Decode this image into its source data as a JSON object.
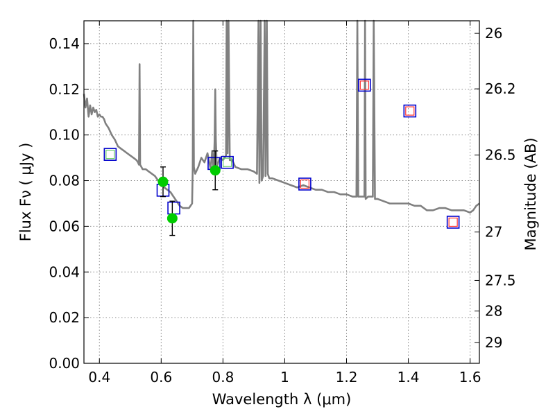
{
  "chart_data": {
    "type": "scatter",
    "xlabel": "Wavelength  λ (μm)",
    "ylabel": "Flux  Fν  ( μJy )",
    "y2label": "Magnitude (AB)",
    "xlim": [
      0.35,
      1.63
    ],
    "ylim": [
      0,
      0.15
    ],
    "grid": true,
    "x_ticks": [
      {
        "v": 0.4,
        "label": "0.4"
      },
      {
        "v": 0.6,
        "label": "0.6"
      },
      {
        "v": 0.8,
        "label": "0.8"
      },
      {
        "v": 1.0,
        "label": "1"
      },
      {
        "v": 1.2,
        "label": "1.2"
      },
      {
        "v": 1.4,
        "label": "1.4"
      },
      {
        "v": 1.6,
        "label": "1.6"
      }
    ],
    "y_ticks": [
      {
        "v": 0.0,
        "label": "0.00"
      },
      {
        "v": 0.02,
        "label": "0.02"
      },
      {
        "v": 0.04,
        "label": "0.04"
      },
      {
        "v": 0.06,
        "label": "0.06"
      },
      {
        "v": 0.08,
        "label": "0.08"
      },
      {
        "v": 0.1,
        "label": "0.10"
      },
      {
        "v": 0.12,
        "label": "0.12"
      },
      {
        "v": 0.14,
        "label": "0.14"
      }
    ],
    "y2_ticks": [
      {
        "flux": 0.1445,
        "label": "26"
      },
      {
        "flux": 0.1202,
        "label": "26.2"
      },
      {
        "flux": 0.0912,
        "label": "26.5"
      },
      {
        "flux": 0.0575,
        "label": "27"
      },
      {
        "flux": 0.0363,
        "label": "27.5"
      },
      {
        "flux": 0.0229,
        "label": "28"
      },
      {
        "flux": 0.0091,
        "label": "29"
      }
    ],
    "colors": {
      "template": "#808080",
      "model_box": "#0000cc",
      "observed_point": "#00cc00",
      "error_bar": "#000000",
      "inner_green": "#66cc66",
      "inner_red": "#ff3333",
      "grid": "#888888"
    },
    "template_spectrum": [
      [
        0.35,
        0.118
      ],
      [
        0.355,
        0.112
      ],
      [
        0.36,
        0.116
      ],
      [
        0.365,
        0.108
      ],
      [
        0.37,
        0.113
      ],
      [
        0.375,
        0.109
      ],
      [
        0.38,
        0.112
      ],
      [
        0.385,
        0.11
      ],
      [
        0.39,
        0.111
      ],
      [
        0.395,
        0.108
      ],
      [
        0.4,
        0.109
      ],
      [
        0.405,
        0.108
      ],
      [
        0.41,
        0.108
      ],
      [
        0.415,
        0.107
      ],
      [
        0.42,
        0.105
      ],
      [
        0.43,
        0.103
      ],
      [
        0.44,
        0.1
      ],
      [
        0.45,
        0.098
      ],
      [
        0.46,
        0.095
      ],
      [
        0.47,
        0.094
      ],
      [
        0.48,
        0.093
      ],
      [
        0.49,
        0.092
      ],
      [
        0.5,
        0.091
      ],
      [
        0.51,
        0.09
      ],
      [
        0.52,
        0.089
      ],
      [
        0.525,
        0.088
      ],
      [
        0.528,
        0.087
      ],
      [
        0.53,
        0.131
      ],
      [
        0.532,
        0.087
      ],
      [
        0.54,
        0.085
      ],
      [
        0.55,
        0.085
      ],
      [
        0.56,
        0.084
      ],
      [
        0.57,
        0.083
      ],
      [
        0.58,
        0.082
      ],
      [
        0.59,
        0.08
      ],
      [
        0.6,
        0.079
      ],
      [
        0.61,
        0.077
      ],
      [
        0.62,
        0.076
      ],
      [
        0.63,
        0.075
      ],
      [
        0.64,
        0.073
      ],
      [
        0.65,
        0.071
      ],
      [
        0.66,
        0.069
      ],
      [
        0.67,
        0.068
      ],
      [
        0.68,
        0.068
      ],
      [
        0.69,
        0.068
      ],
      [
        0.7,
        0.07
      ],
      [
        0.702,
        0.085
      ],
      [
        0.704,
        0.15
      ],
      [
        0.706,
        0.086
      ],
      [
        0.71,
        0.083
      ],
      [
        0.72,
        0.086
      ],
      [
        0.73,
        0.09
      ],
      [
        0.74,
        0.088
      ],
      [
        0.75,
        0.092
      ],
      [
        0.76,
        0.085
      ],
      [
        0.765,
        0.093
      ],
      [
        0.77,
        0.084
      ],
      [
        0.773,
        0.098
      ],
      [
        0.775,
        0.12
      ],
      [
        0.777,
        0.098
      ],
      [
        0.78,
        0.086
      ],
      [
        0.79,
        0.09
      ],
      [
        0.8,
        0.089
      ],
      [
        0.81,
        0.091
      ],
      [
        0.812,
        0.15
      ],
      [
        0.815,
        0.092
      ],
      [
        0.818,
        0.15
      ],
      [
        0.822,
        0.089
      ],
      [
        0.83,
        0.089
      ],
      [
        0.84,
        0.086
      ],
      [
        0.86,
        0.085
      ],
      [
        0.88,
        0.085
      ],
      [
        0.9,
        0.084
      ],
      [
        0.91,
        0.083
      ],
      [
        0.915,
        0.15
      ],
      [
        0.918,
        0.079
      ],
      [
        0.922,
        0.15
      ],
      [
        0.925,
        0.08
      ],
      [
        0.93,
        0.082
      ],
      [
        0.935,
        0.15
      ],
      [
        0.938,
        0.082
      ],
      [
        0.942,
        0.15
      ],
      [
        0.945,
        0.083
      ],
      [
        0.95,
        0.081
      ],
      [
        0.96,
        0.081
      ],
      [
        0.98,
        0.08
      ],
      [
        1.0,
        0.079
      ],
      [
        1.02,
        0.078
      ],
      [
        1.04,
        0.077
      ],
      [
        1.06,
        0.078
      ],
      [
        1.08,
        0.077
      ],
      [
        1.1,
        0.076
      ],
      [
        1.12,
        0.076
      ],
      [
        1.14,
        0.075
      ],
      [
        1.16,
        0.075
      ],
      [
        1.18,
        0.074
      ],
      [
        1.2,
        0.074
      ],
      [
        1.22,
        0.073
      ],
      [
        1.232,
        0.073
      ],
      [
        1.235,
        0.15
      ],
      [
        1.238,
        0.073
      ],
      [
        1.25,
        0.073
      ],
      [
        1.258,
        0.073
      ],
      [
        1.26,
        0.15
      ],
      [
        1.262,
        0.072
      ],
      [
        1.27,
        0.073
      ],
      [
        1.285,
        0.073
      ],
      [
        1.288,
        0.15
      ],
      [
        1.292,
        0.072
      ],
      [
        1.3,
        0.072
      ],
      [
        1.32,
        0.071
      ],
      [
        1.34,
        0.07
      ],
      [
        1.36,
        0.07
      ],
      [
        1.38,
        0.07
      ],
      [
        1.4,
        0.07
      ],
      [
        1.42,
        0.069
      ],
      [
        1.44,
        0.069
      ],
      [
        1.46,
        0.067
      ],
      [
        1.48,
        0.067
      ],
      [
        1.5,
        0.068
      ],
      [
        1.52,
        0.068
      ],
      [
        1.54,
        0.067
      ],
      [
        1.56,
        0.067
      ],
      [
        1.58,
        0.067
      ],
      [
        1.6,
        0.066
      ],
      [
        1.61,
        0.067
      ],
      [
        1.62,
        0.069
      ],
      [
        1.63,
        0.07
      ]
    ],
    "model_fluxes": [
      {
        "x": 0.435,
        "y": 0.0915,
        "inner": "green"
      },
      {
        "x": 0.606,
        "y": 0.0758,
        "inner": "none"
      },
      {
        "x": 0.641,
        "y": 0.068,
        "inner": "none"
      },
      {
        "x": 0.771,
        "y": 0.0875,
        "inner": "none"
      },
      {
        "x": 0.814,
        "y": 0.088,
        "inner": "green"
      },
      {
        "x": 1.065,
        "y": 0.0785,
        "inner": "red"
      },
      {
        "x": 1.258,
        "y": 0.1218,
        "inner": "red"
      },
      {
        "x": 1.405,
        "y": 0.1105,
        "inner": "red"
      },
      {
        "x": 1.545,
        "y": 0.0618,
        "inner": "red"
      }
    ],
    "observed": [
      {
        "x": 0.606,
        "y": 0.0795,
        "err_low": 0.073,
        "err_high": 0.086
      },
      {
        "x": 0.636,
        "y": 0.0635,
        "err_low": 0.056,
        "err_high": 0.071
      },
      {
        "x": 0.775,
        "y": 0.0845,
        "err_low": 0.076,
        "err_high": 0.093
      }
    ]
  }
}
